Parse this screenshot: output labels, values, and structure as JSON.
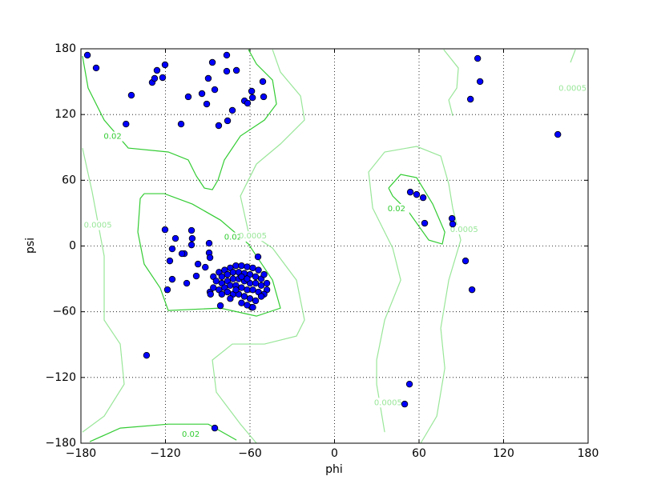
{
  "chart_data": {
    "type": "scatter",
    "xlabel": "phi",
    "ylabel": "psi",
    "xlim": [
      -180,
      180
    ],
    "ylim": [
      -180,
      180
    ],
    "xticks": [
      {
        "value": -180,
        "label": "−180"
      },
      {
        "value": -120,
        "label": "−120"
      },
      {
        "value": -60,
        "label": "−60"
      },
      0,
      60,
      120,
      180
    ],
    "yticks": [
      {
        "value": -180,
        "label": "−180"
      },
      {
        "value": -120,
        "label": "−120"
      },
      {
        "value": -60,
        "label": "−60"
      },
      0,
      60,
      120,
      180
    ],
    "grid": true,
    "color": "#0000ff",
    "x": [
      -175.4,
      -169.2,
      -144.2,
      -148,
      -129.4,
      -127.7,
      -126,
      -122,
      -120.3,
      -108.9,
      -103.8,
      -94.1,
      -90.7,
      -89.6,
      -86.7,
      -85,
      -82.2,
      -76.5,
      -76.5,
      -75.9,
      -72.5,
      -69.6,
      -63.9,
      -61.7,
      -58.8,
      -58.2,
      -50.9,
      -50.3,
      101.6,
      103.3,
      96.5,
      158.5,
      53.8,
      58.3,
      62.9,
      64,
      83.4,
      83.9,
      93,
      97.6,
      53.2,
      49.8,
      -85,
      -133.4,
      -120.3,
      -101.5,
      -112.9,
      -101,
      -101.5,
      -89,
      -115.2,
      -106.6,
      -108.3,
      -89,
      -116.9,
      -88.4,
      -54.3,
      -96.9,
      -91.7,
      -115.2,
      -98.1,
      -104.9,
      -118.6,
      -81,
      -58.8,
      -88.4,
      -70,
      -66,
      -62,
      -58,
      -54,
      -74,
      -78,
      -82,
      -86,
      -80,
      -76,
      -72,
      -68,
      -64,
      -60,
      -56,
      -52,
      -50,
      -48,
      -84,
      -80,
      -76,
      -72,
      -68,
      -64,
      -60,
      -56,
      -52,
      -48,
      -86,
      -82,
      -78,
      -74,
      -70,
      -66,
      -62,
      -58,
      -54,
      -50,
      -80,
      -76,
      -72,
      -68,
      -64,
      -60,
      -56,
      -52,
      -74,
      -66,
      -62,
      -58,
      -88,
      -70,
      -62,
      -66
    ],
    "y": [
      174.2,
      162.5,
      137.6,
      111.3,
      149.3,
      153,
      160.3,
      153.7,
      165.4,
      111.3,
      136.2,
      139.1,
      129.6,
      153,
      167.6,
      142.7,
      109.9,
      159.5,
      174.2,
      114.3,
      123.8,
      160.3,
      132.5,
      130.3,
      141.3,
      135.4,
      150.1,
      136.2,
      171.2,
      150.1,
      134,
      101.8,
      49.2,
      47,
      44.1,
      20.8,
      25.1,
      20,
      -13.6,
      -39.9,
      -126.1,
      -144.3,
      -166.2,
      -99.8,
      14.9,
      14.2,
      6.9,
      6.9,
      1,
      2.5,
      -2.6,
      -7,
      -7,
      -6.3,
      -13.6,
      -10.6,
      -9.9,
      -16.5,
      -19.4,
      -30.4,
      -27.4,
      -34,
      -39.9,
      -54.5,
      -56,
      -42,
      -18,
      -18,
      -19,
      -20,
      -22,
      -20,
      -22,
      -24,
      -28,
      -28,
      -26,
      -24,
      -24,
      -25,
      -26,
      -28,
      -30,
      -26,
      -34,
      -32,
      -34,
      -32,
      -30,
      -30,
      -32,
      -34,
      -34,
      -36,
      -40,
      -38,
      -40,
      -38,
      -36,
      -36,
      -38,
      -40,
      -40,
      -42,
      -44,
      -44,
      -42,
      -44,
      -44,
      -46,
      -48,
      -50,
      -46,
      -48,
      -52,
      -54,
      -56,
      -44,
      -40,
      -30,
      -28
    ],
    "contours": [
      {
        "label": "0.02",
        "color": "#33cc33",
        "lines": [
          [
            [
              -178.9,
              173.4
            ],
            [
              -174.9,
              144.2
            ],
            [
              -163.5,
              115
            ],
            [
              -146.4,
              89.4
            ],
            [
              -118,
              85.8
            ],
            [
              -103.8,
              78.5
            ],
            [
              -98.1,
              63.9
            ],
            [
              -92.4,
              52.9
            ],
            [
              -86.7,
              51.4
            ],
            [
              -82.7,
              60.2
            ],
            [
              -78.2,
              78.5
            ],
            [
              -66.8,
              100.4
            ],
            [
              -49.7,
              115
            ],
            [
              -41.2,
              129.6
            ],
            [
              -44,
              151.5
            ],
            [
              -55.4,
              166.1
            ],
            [
              -61.1,
              179.3
            ]
          ],
          [
            [
              -135.1,
              47.8
            ],
            [
              -120.8,
              47.8
            ],
            [
              -100.9,
              38.3
            ],
            [
              -81,
              23.7
            ],
            [
              -61.1,
              1.8
            ],
            [
              -44,
              -31.1
            ],
            [
              -38.4,
              -56.7
            ],
            [
              -55.4,
              -64
            ],
            [
              -81,
              -56.7
            ],
            [
              -118,
              -58.9
            ],
            [
              -123.7,
              -38.4
            ],
            [
              -135.1,
              -16.5
            ],
            [
              -139.6,
              12.7
            ],
            [
              -137.9,
              43.4
            ],
            [
              -135.1,
              47.8
            ]
          ],
          [
            [
              38.4,
              52.9
            ],
            [
              47,
              65.3
            ],
            [
              58.3,
              62.4
            ],
            [
              69.7,
              38.3
            ],
            [
              78.3,
              12.7
            ],
            [
              76.5,
              1.8
            ],
            [
              66.9,
              5.4
            ],
            [
              52.7,
              31
            ],
            [
              41.3,
              45.6
            ],
            [
              38.4,
              52.9
            ]
          ],
          [
            [
              -173.7,
              -178.6
            ],
            [
              -152.1,
              -166.2
            ],
            [
              -118,
              -162.6
            ],
            [
              -89.6,
              -162.6
            ],
            [
              -69.6,
              -177.2
            ]
          ]
        ],
        "label_positions": [
          [
            -157.5,
            100
          ],
          [
            -72,
            8
          ],
          [
            44,
            34
          ],
          [
            -102,
            -172
          ]
        ]
      },
      {
        "label": "0.0005",
        "color": "#99e699",
        "lines": [
          [
            [
              -178.9,
              89.4
            ],
            [
              -172,
              49.3
            ],
            [
              -163.5,
              -9.2
            ],
            [
              -163.5,
              -67.6
            ],
            [
              -152.1,
              -89.5
            ],
            [
              -149.3,
              -126.1
            ],
            [
              -163.5,
              -155.3
            ],
            [
              -178.9,
              -169.9
            ]
          ],
          [
            [
              -44,
              179.3
            ],
            [
              -38.4,
              158.8
            ],
            [
              -24.1,
              136.9
            ],
            [
              -21.3,
              115
            ],
            [
              -38.4,
              93.1
            ],
            [
              -55.4,
              74.8
            ],
            [
              -66.8,
              45.6
            ],
            [
              -61.1,
              12.7
            ],
            [
              -44,
              -1.9
            ],
            [
              -27,
              -31.1
            ],
            [
              -21.3,
              -67.6
            ],
            [
              -27,
              -82.2
            ],
            [
              -49.7,
              -89.5
            ],
            [
              -72.5,
              -89.5
            ],
            [
              -86.7,
              -104.1
            ],
            [
              -83.9,
              -133.4
            ],
            [
              -66.8,
              -162.6
            ],
            [
              -55.4,
              -180
            ]
          ],
          [
            [
              35.6,
              -169.9
            ],
            [
              29.9,
              -126.1
            ],
            [
              29.9,
              -104.1
            ],
            [
              35.6,
              -67.6
            ],
            [
              47,
              -31.1
            ],
            [
              41.3,
              -1.9
            ],
            [
              27.1,
              34.6
            ],
            [
              24.2,
              67.5
            ],
            [
              35.6,
              85.8
            ],
            [
              58.3,
              90.9
            ],
            [
              75.4,
              82.1
            ],
            [
              81.1,
              56.6
            ],
            [
              83.9,
              34.6
            ],
            [
              89.6,
              5.4
            ],
            [
              81.1,
              -31.1
            ],
            [
              75.4,
              -75
            ],
            [
              78.3,
              -111.5
            ],
            [
              72.6,
              -155.3
            ],
            [
              61.2,
              -180
            ]
          ],
          [
            [
              77.5,
              179.3
            ],
            [
              87.9,
              162.5
            ],
            [
              86.8,
              144.2
            ],
            [
              81.1,
              133.3
            ],
            [
              83.9,
              118.7
            ]
          ],
          [
            [
              167.5,
              167.6
            ],
            [
              171,
              179.3
            ]
          ]
        ],
        "label_positions": [
          [
            169,
            144
          ],
          [
            -168,
            19
          ],
          [
            -58,
            9
          ],
          [
            92,
            15
          ],
          [
            38,
            -143
          ]
        ]
      }
    ]
  }
}
